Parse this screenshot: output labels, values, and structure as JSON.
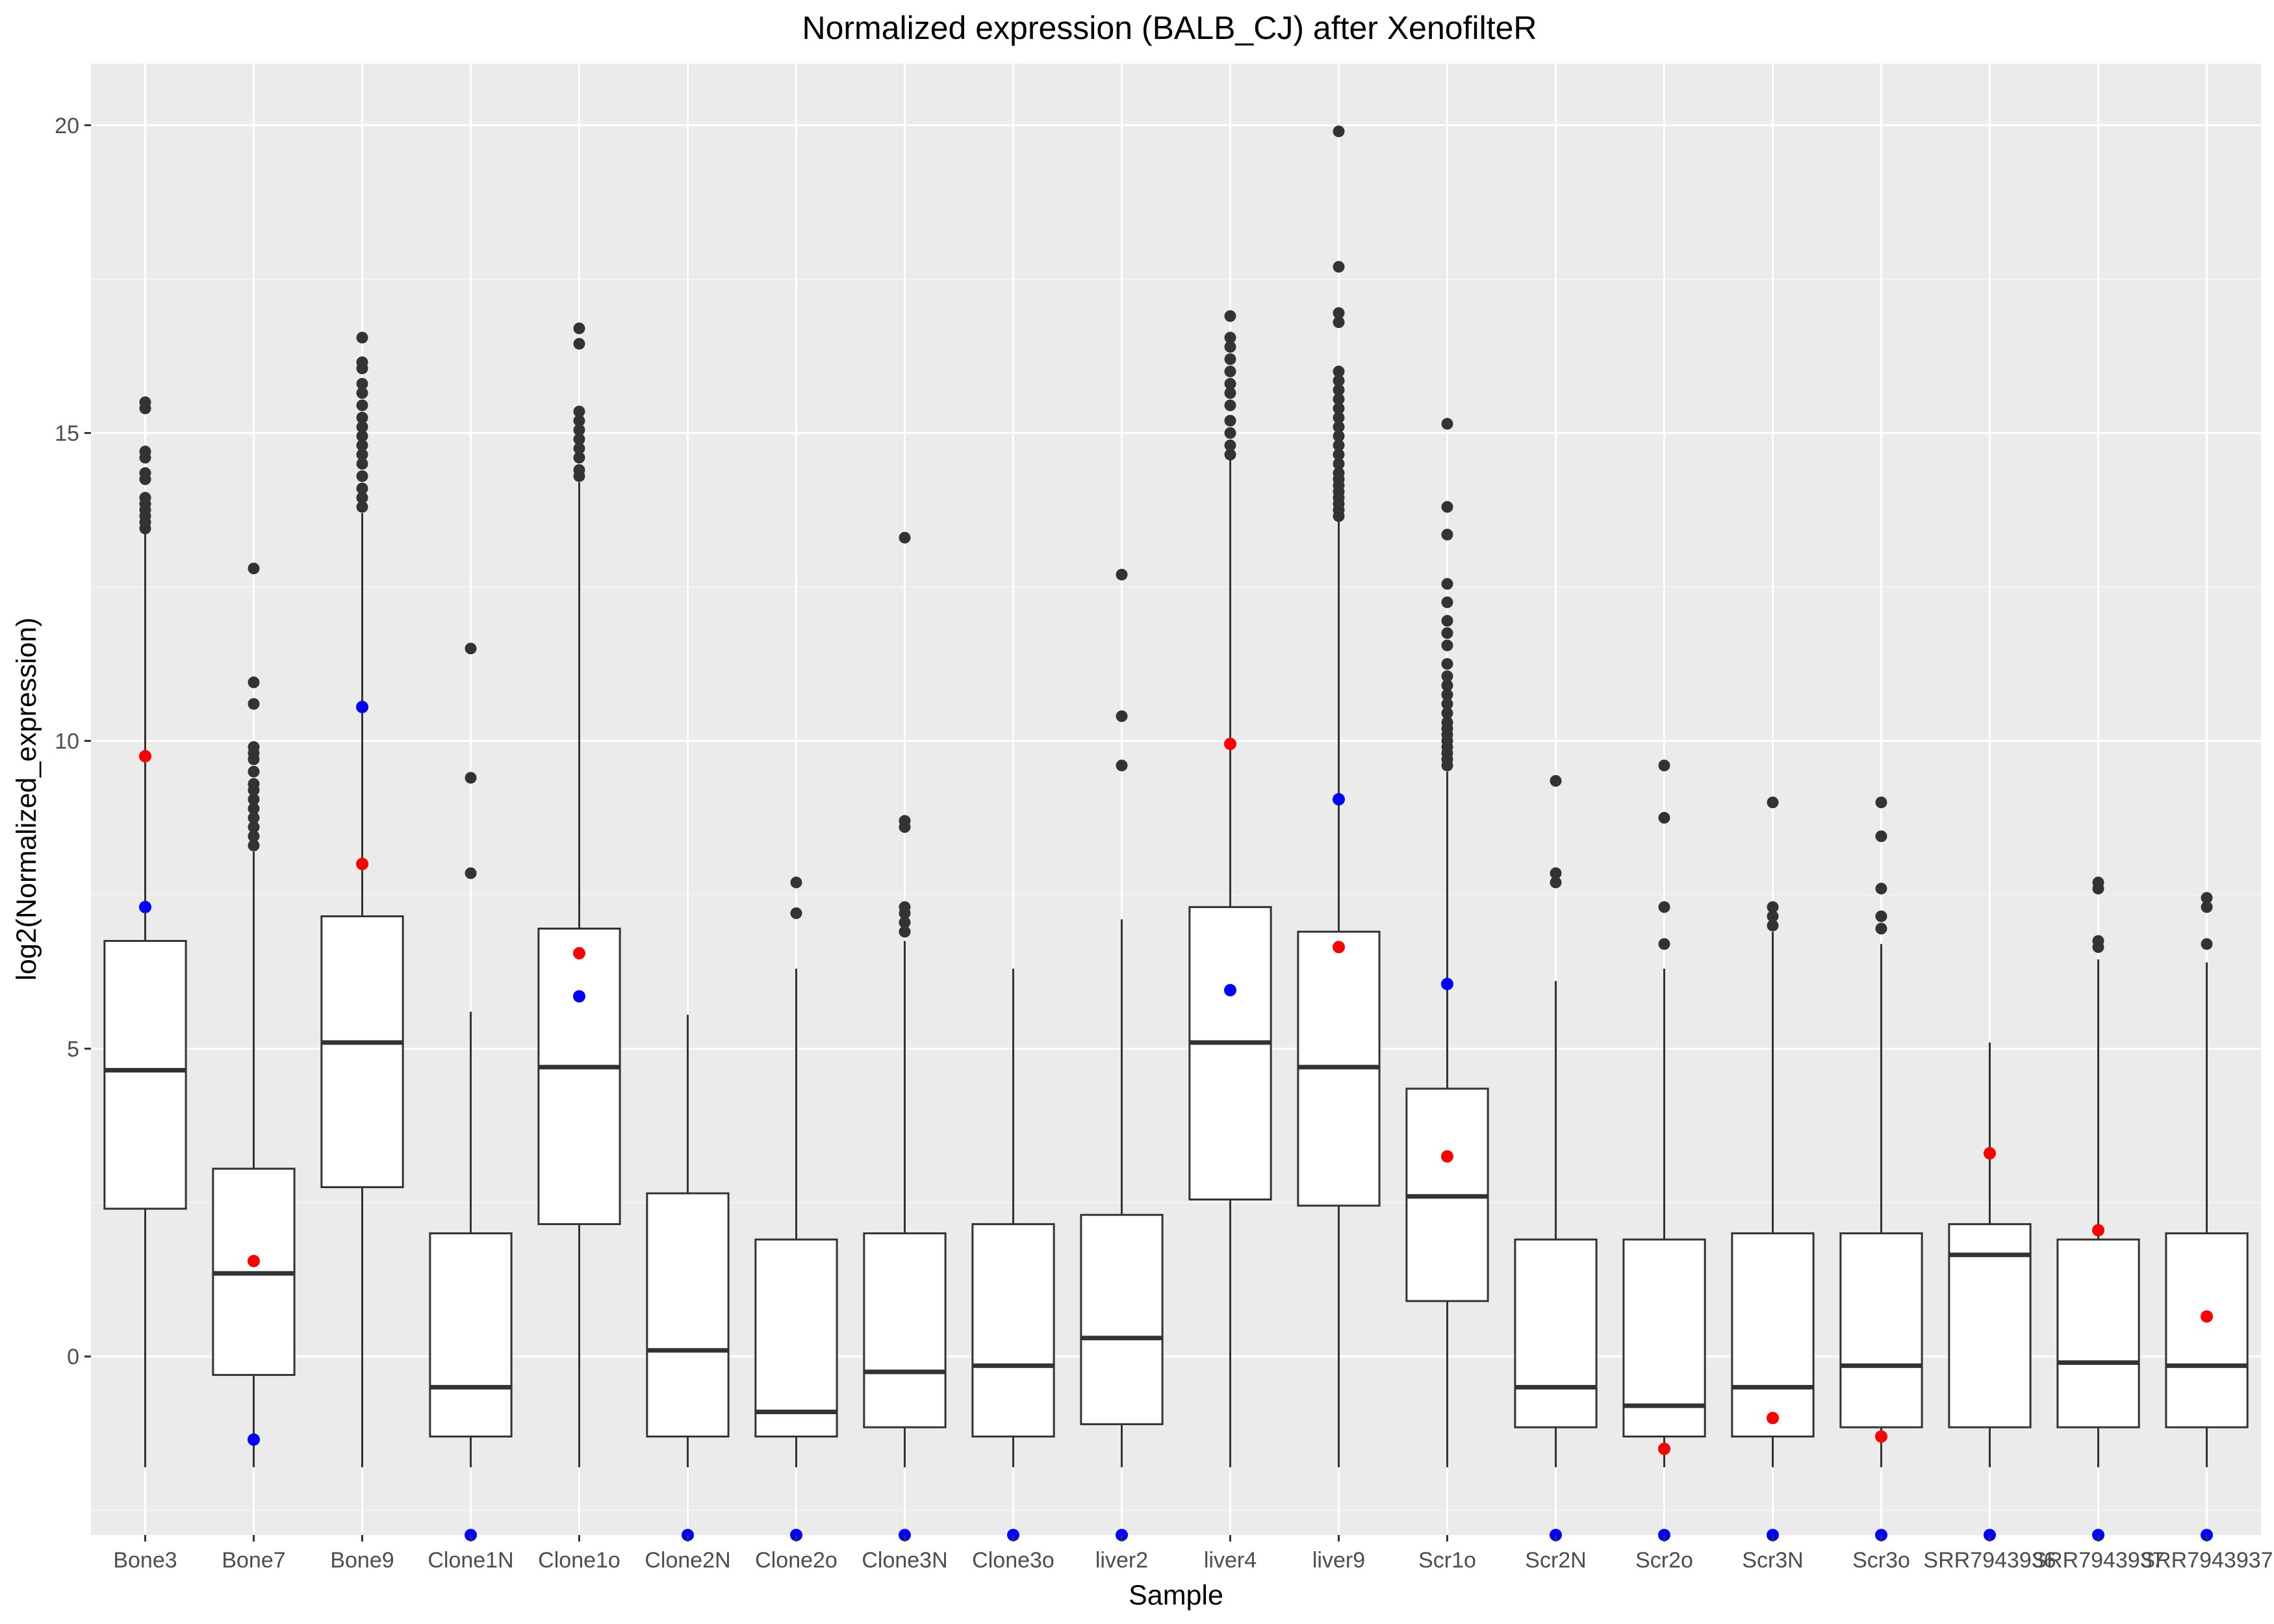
{
  "chart_data": {
    "type": "boxplot",
    "title": "Normalized expression (BALB_CJ) after XenofilteR",
    "xlabel": "Sample",
    "ylabel": "log2(Normalized_expression)",
    "ylim": [
      -2.9,
      21.0
    ],
    "y_ticks": [
      0,
      5,
      10,
      15,
      20
    ],
    "grid": true,
    "legend": "none",
    "colors": {
      "panel": "#ebebeb",
      "grid_major": "#ffffff",
      "box_fill": "#ffffff",
      "box_line": "#333333",
      "outlier": "#333333",
      "highlight_red": "#ff0000",
      "highlight_blue": "#0000ff"
    },
    "categories": [
      "Bone3",
      "Bone7",
      "Bone9",
      "Clone1N",
      "Clone1o",
      "Clone2N",
      "Clone2o",
      "Clone3N",
      "Clone3o",
      "liver2",
      "liver4",
      "liver9",
      "Scr1o",
      "Scr2N",
      "Scr2o",
      "Scr3N",
      "Scr3o",
      "SRR7943936",
      "SRR7943937",
      "SRR7943937"
    ],
    "boxes": [
      {
        "whisker_low": -1.8,
        "q1": 2.4,
        "median": 4.65,
        "q3": 6.75,
        "whisker_high": 13.4,
        "outliers": [
          13.45,
          13.55,
          13.65,
          13.75,
          13.85,
          13.95,
          14.25,
          14.35,
          14.6,
          14.7,
          15.4,
          15.5
        ],
        "red": 9.75,
        "blue": 7.3
      },
      {
        "whisker_low": -1.8,
        "q1": -0.3,
        "median": 1.35,
        "q3": 3.05,
        "whisker_high": 8.2,
        "outliers": [
          8.3,
          8.45,
          8.6,
          8.75,
          8.9,
          9.05,
          9.2,
          9.3,
          9.5,
          9.7,
          9.8,
          9.9,
          10.6,
          10.95,
          12.8
        ],
        "red": 1.55,
        "blue": -1.35
      },
      {
        "whisker_low": -1.8,
        "q1": 2.75,
        "median": 5.1,
        "q3": 7.15,
        "whisker_high": 13.7,
        "outliers": [
          13.8,
          13.95,
          14.1,
          14.3,
          14.5,
          14.65,
          14.8,
          14.95,
          15.1,
          15.25,
          15.45,
          15.65,
          15.8,
          16.05,
          16.15,
          16.55
        ],
        "red": 8.0,
        "blue": 10.55
      },
      {
        "whisker_low": -1.8,
        "q1": -1.3,
        "median": -0.5,
        "q3": 2.0,
        "whisker_high": 5.6,
        "outliers": [
          7.85,
          9.4,
          11.5
        ],
        "red": null,
        "blue": -2.9
      },
      {
        "whisker_low": -1.8,
        "q1": 2.15,
        "median": 4.7,
        "q3": 6.95,
        "whisker_high": 14.2,
        "outliers": [
          14.3,
          14.4,
          14.6,
          14.75,
          14.9,
          15.05,
          15.2,
          15.35,
          16.45,
          16.7
        ],
        "red": 6.55,
        "blue": 5.85
      },
      {
        "whisker_low": -1.8,
        "q1": -1.3,
        "median": 0.1,
        "q3": 2.65,
        "whisker_high": 5.55,
        "outliers": [],
        "red": null,
        "blue": -2.9
      },
      {
        "whisker_low": -1.8,
        "q1": -1.3,
        "median": -0.9,
        "q3": 1.9,
        "whisker_high": 6.3,
        "outliers": [
          7.2,
          7.7
        ],
        "red": null,
        "blue": -2.9
      },
      {
        "whisker_low": -1.8,
        "q1": -1.15,
        "median": -0.25,
        "q3": 2.0,
        "whisker_high": 6.75,
        "outliers": [
          6.9,
          7.05,
          7.2,
          7.3,
          8.6,
          8.7,
          13.3
        ],
        "red": null,
        "blue": -2.9
      },
      {
        "whisker_low": -1.8,
        "q1": -1.3,
        "median": -0.15,
        "q3": 2.15,
        "whisker_high": 6.3,
        "outliers": [],
        "red": null,
        "blue": -2.9
      },
      {
        "whisker_low": -1.8,
        "q1": -1.1,
        "median": 0.3,
        "q3": 2.3,
        "whisker_high": 7.1,
        "outliers": [
          9.6,
          10.4,
          12.7
        ],
        "red": null,
        "blue": -2.9
      },
      {
        "whisker_low": -1.8,
        "q1": 2.55,
        "median": 5.1,
        "q3": 7.3,
        "whisker_high": 14.6,
        "outliers": [
          14.65,
          14.8,
          15.0,
          15.2,
          15.45,
          15.65,
          15.8,
          16.0,
          16.2,
          16.4,
          16.55,
          16.9
        ],
        "red": 9.95,
        "blue": 5.95
      },
      {
        "whisker_low": -1.8,
        "q1": 2.45,
        "median": 4.7,
        "q3": 6.9,
        "whisker_high": 13.6,
        "outliers": [
          13.65,
          13.75,
          13.85,
          13.95,
          14.05,
          14.15,
          14.25,
          14.35,
          14.5,
          14.65,
          14.8,
          14.95,
          15.1,
          15.25,
          15.4,
          15.55,
          15.7,
          15.85,
          16.0,
          16.8,
          16.95,
          17.7,
          19.9
        ],
        "red": 6.65,
        "blue": 9.05
      },
      {
        "whisker_low": -1.8,
        "q1": 0.9,
        "median": 2.6,
        "q3": 4.35,
        "whisker_high": 9.5,
        "outliers": [
          9.6,
          9.7,
          9.8,
          9.9,
          10.0,
          10.1,
          10.2,
          10.3,
          10.45,
          10.6,
          10.75,
          10.9,
          11.05,
          11.25,
          11.55,
          11.75,
          11.95,
          12.25,
          12.55,
          13.35,
          13.8,
          15.15
        ],
        "red": 3.25,
        "blue": 6.05
      },
      {
        "whisker_low": -1.8,
        "q1": -1.15,
        "median": -0.5,
        "q3": 1.9,
        "whisker_high": 6.1,
        "outliers": [
          7.7,
          7.85,
          9.35
        ],
        "red": null,
        "blue": -2.9
      },
      {
        "whisker_low": -1.8,
        "q1": -1.3,
        "median": -0.8,
        "q3": 1.9,
        "whisker_high": 6.3,
        "outliers": [
          6.7,
          7.3,
          8.75,
          9.6
        ],
        "red": -1.5,
        "blue": -2.9
      },
      {
        "whisker_low": -1.8,
        "q1": -1.3,
        "median": -0.5,
        "q3": 2.0,
        "whisker_high": 6.9,
        "outliers": [
          7.0,
          7.15,
          7.3,
          9.0
        ],
        "red": -1.0,
        "blue": -2.9
      },
      {
        "whisker_low": -1.8,
        "q1": -1.15,
        "median": -0.15,
        "q3": 2.0,
        "whisker_high": 6.7,
        "outliers": [
          6.95,
          7.15,
          7.6,
          8.45,
          9.0
        ],
        "red": -1.3,
        "blue": -2.9
      },
      {
        "whisker_low": -1.8,
        "q1": -1.15,
        "median": 1.65,
        "q3": 2.15,
        "whisker_high": 5.1,
        "outliers": [],
        "red": 3.3,
        "blue": -2.9
      },
      {
        "whisker_low": -1.8,
        "q1": -1.15,
        "median": -0.1,
        "q3": 1.9,
        "whisker_high": 6.45,
        "outliers": [
          6.65,
          6.75,
          7.6,
          7.7
        ],
        "red": 2.05,
        "blue": -2.9
      },
      {
        "whisker_low": -1.8,
        "q1": -1.15,
        "median": -0.15,
        "q3": 2.0,
        "whisker_high": 6.4,
        "outliers": [
          6.7,
          7.3,
          7.45
        ],
        "red": 0.65,
        "blue": -2.9
      }
    ]
  }
}
